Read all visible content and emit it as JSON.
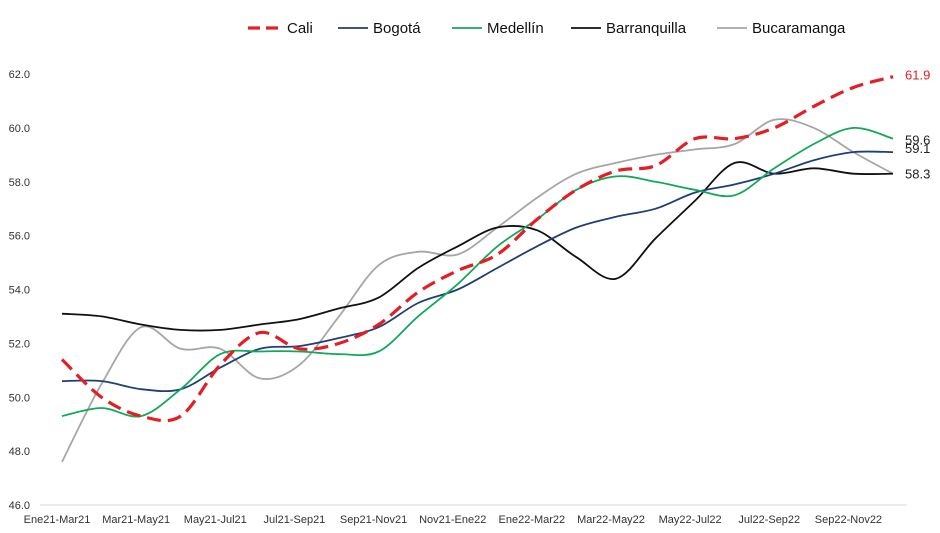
{
  "chart_data": {
    "type": "line",
    "title": "",
    "xlabel": "",
    "ylabel": "",
    "ylim": [
      46.0,
      62.0
    ],
    "yticks": [
      "46.0",
      "48.0",
      "50.0",
      "52.0",
      "54.0",
      "56.0",
      "58.0",
      "60.0",
      "62.0"
    ],
    "grid": false,
    "legend_position": "top",
    "x_tick_labels": [
      "Ene21-Mar21",
      "Mar21-May21",
      "May21-Jul21",
      "Jul21-Sep21",
      "Sep21-Nov21",
      "Nov21-Ene22",
      "Ene22-Mar22",
      "Mar22-May22",
      "May22-Jul22",
      "Jul22-Sep22",
      "Sep22-Nov22"
    ],
    "categories": [
      "Ene21-Mar21",
      "Feb21-Abr21",
      "Mar21-May21",
      "Abr21-Jun21",
      "May21-Jul21",
      "Jun21-Ago21",
      "Jul21-Sep21",
      "Ago21-Oct21",
      "Sep21-Nov21",
      "Oct21-Dic21",
      "Nov21-Ene22",
      "Dic21-Feb22",
      "Ene22-Mar22",
      "Feb22-Abr22",
      "Mar22-May22",
      "Abr22-Jun22",
      "May22-Jul22",
      "Jun22-Ago22",
      "Jul22-Sep22",
      "Ago22-Oct22",
      "Sep22-Nov22",
      "Oct22-Dic22"
    ],
    "series": [
      {
        "name": "Cali",
        "color": "#e31e24",
        "dashed": true,
        "end_label": "61.9",
        "values": [
          51.4,
          50.0,
          49.3,
          49.3,
          51.2,
          52.4,
          51.8,
          52.0,
          52.7,
          53.9,
          54.7,
          55.3,
          56.6,
          57.7,
          58.4,
          58.6,
          59.6,
          59.6,
          60.0,
          60.8,
          61.5,
          61.9
        ]
      },
      {
        "name": "Bogotá",
        "color": "#1f3f77",
        "dashed": false,
        "end_label": "59.1",
        "values": [
          50.6,
          50.6,
          50.3,
          50.3,
          51.1,
          51.8,
          51.9,
          52.2,
          52.6,
          53.5,
          54.0,
          54.8,
          55.6,
          56.3,
          56.7,
          57.0,
          57.6,
          57.9,
          58.3,
          58.8,
          59.1,
          59.1
        ]
      },
      {
        "name": "Medellín",
        "color": "#12a85a",
        "dashed": false,
        "end_label": "59.6",
        "values": [
          49.3,
          49.6,
          49.3,
          50.3,
          51.6,
          51.7,
          51.7,
          51.6,
          51.7,
          53.0,
          54.2,
          55.6,
          56.6,
          57.7,
          58.2,
          58.0,
          57.7,
          57.5,
          58.5,
          59.4,
          60.0,
          59.6
        ]
      },
      {
        "name": "Barranquilla",
        "color": "#111111",
        "dashed": false,
        "end_label": "58.3",
        "values": [
          53.1,
          53.0,
          52.7,
          52.5,
          52.5,
          52.7,
          52.9,
          53.3,
          53.7,
          54.8,
          55.6,
          56.3,
          56.2,
          55.2,
          54.4,
          55.9,
          57.3,
          58.7,
          58.3,
          58.5,
          58.3,
          58.3
        ]
      },
      {
        "name": "Bucaramanga",
        "color": "#a6a6a6",
        "dashed": false,
        "end_label": "",
        "values": [
          47.6,
          50.5,
          52.6,
          51.8,
          51.8,
          50.7,
          51.2,
          53.0,
          54.9,
          55.4,
          55.3,
          56.3,
          57.4,
          58.3,
          58.7,
          59.0,
          59.2,
          59.4,
          60.3,
          60.0,
          59.1,
          58.3
        ]
      }
    ]
  }
}
